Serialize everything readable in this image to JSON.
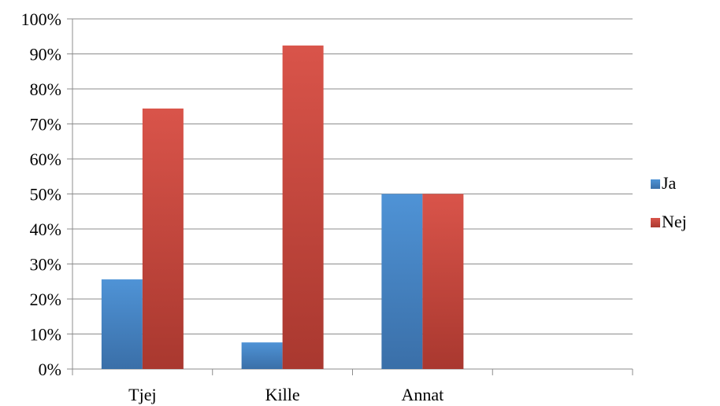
{
  "chart_data": {
    "type": "bar",
    "categories": [
      "Tjej",
      "Kille",
      "Annat"
    ],
    "series": [
      {
        "name": "Ja",
        "values": [
          25.6,
          7.6,
          50
        ],
        "color": "#4a86c8"
      },
      {
        "name": "Nej",
        "values": [
          74.4,
          92.4,
          50
        ],
        "color": "#cf4a40"
      }
    ],
    "ylim": [
      0,
      100
    ],
    "yticks": [
      "0%",
      "10%",
      "20%",
      "30%",
      "40%",
      "50%",
      "60%",
      "70%",
      "80%",
      "90%",
      "100%"
    ],
    "grid": true,
    "legend_position": "right"
  }
}
